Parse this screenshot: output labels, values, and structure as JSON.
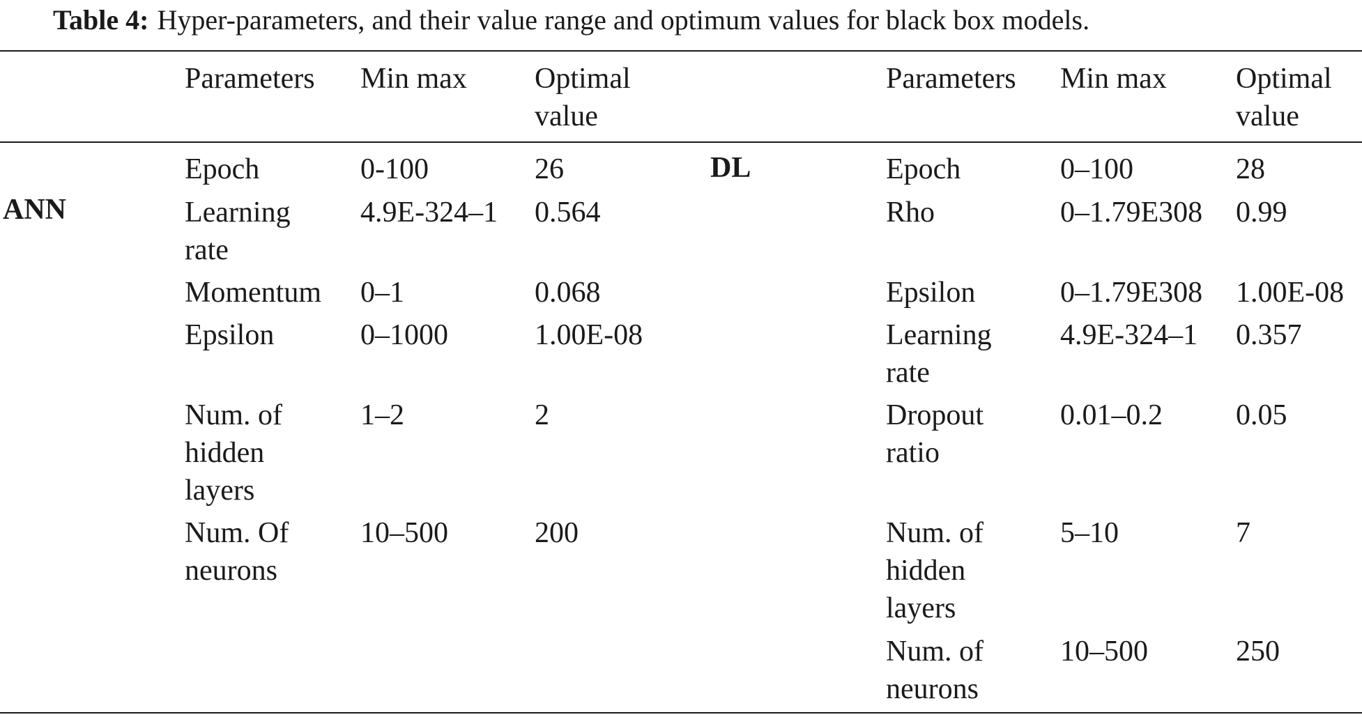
{
  "caption": {
    "label": "Table 4:",
    "text": "Hyper-parameters, and their value range and optimum values for black box models."
  },
  "header": {
    "left": {
      "params": "Parameters",
      "minmax": "Min max",
      "optimal": [
        "Optimal",
        "value"
      ]
    },
    "right": {
      "params": "Parameters",
      "minmax": "Min max",
      "optimal": [
        "Optimal",
        "value"
      ]
    }
  },
  "left_model": "ANN",
  "right_model": "DL",
  "left_rows": [
    {
      "param": [
        "Epoch"
      ],
      "minmax": "0-100",
      "optimal": "26"
    },
    {
      "param": [
        "Learning",
        "rate"
      ],
      "minmax": "4.9E-324–1",
      "optimal": "0.564"
    },
    {
      "param": [
        "Momentum"
      ],
      "minmax": "0–1",
      "optimal": "0.068"
    },
    {
      "param": [
        "Epsilon"
      ],
      "minmax": "0–1000",
      "optimal": "1.00E-08"
    },
    {
      "param": [
        "Num. of",
        "hidden",
        "layers"
      ],
      "minmax": "1–2",
      "optimal": "2"
    },
    {
      "param": [
        "Num. Of",
        "neurons"
      ],
      "minmax": "10–500",
      "optimal": "200"
    }
  ],
  "right_rows": [
    {
      "param": [
        "Epoch"
      ],
      "minmax": "0–100",
      "optimal": "28"
    },
    {
      "param": [
        "Rho"
      ],
      "minmax": "0–1.79E308",
      "optimal": "0.99"
    },
    {
      "param": [
        "Epsilon"
      ],
      "minmax": "0–1.79E308",
      "optimal": "1.00E-08"
    },
    {
      "param": [
        "Learning",
        "rate"
      ],
      "minmax": "4.9E-324–1",
      "optimal": "0.357"
    },
    {
      "param": [
        "Dropout",
        "ratio"
      ],
      "minmax": "0.01–0.2",
      "optimal": "0.05"
    },
    {
      "param": [
        "Num. of",
        "hidden",
        "layers"
      ],
      "minmax": "5–10",
      "optimal": "7"
    },
    {
      "param": [
        "Num. of",
        "neurons"
      ],
      "minmax": "10–500",
      "optimal": "250"
    }
  ]
}
